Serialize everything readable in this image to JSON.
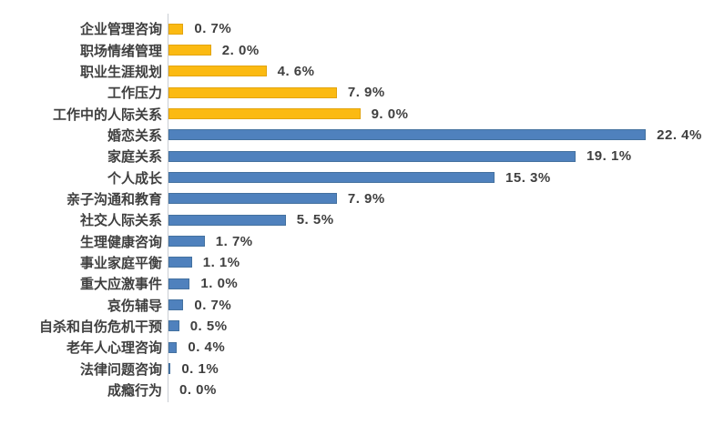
{
  "chart_data": {
    "type": "bar",
    "orientation": "horizontal",
    "title": "",
    "xlabel": "",
    "ylabel": "",
    "xlim": [
      0,
      25
    ],
    "grid": false,
    "legend_position": "none",
    "categories": [
      "企业管理咨询",
      "职场情绪管理",
      "职业生涯规划",
      "工作压力",
      "工作中的人际关系",
      "婚恋关系",
      "家庭关系",
      "个人成长",
      "亲子沟通和教育",
      "社交人际关系",
      "生理健康咨询",
      "事业家庭平衡",
      "重大应激事件",
      "哀伤辅导",
      "自杀和自伤危机干预",
      "老年人心理咨询",
      "法律问题咨询",
      "成瘾行为"
    ],
    "values": [
      0.7,
      2.0,
      4.6,
      7.9,
      9.0,
      22.4,
      19.1,
      15.3,
      7.9,
      5.5,
      1.7,
      1.1,
      1.0,
      0.7,
      0.5,
      0.4,
      0.1,
      0.0
    ],
    "value_labels": [
      "0. 7%",
      "2. 0%",
      "4. 6%",
      "7. 9%",
      "9. 0%",
      "22. 4%",
      "19. 1%",
      "15. 3%",
      "7. 9%",
      "5. 5%",
      "1. 7%",
      "1. 1%",
      "1. 0%",
      "0. 7%",
      "0. 5%",
      "0. 4%",
      "0. 1%",
      "0. 0%"
    ],
    "row_colors": [
      "gold",
      "gold",
      "gold",
      "gold",
      "gold",
      "blue",
      "blue",
      "blue",
      "blue",
      "blue",
      "blue",
      "blue",
      "blue",
      "blue",
      "blue",
      "blue",
      "blue",
      "blue"
    ],
    "colors": {
      "gold": "#FBBA12",
      "gold_border": "#E2A410",
      "blue": "#4F81BD",
      "blue_border": "#44719F",
      "axis": "#C9CDD3",
      "text": "#3F3F3F"
    }
  }
}
